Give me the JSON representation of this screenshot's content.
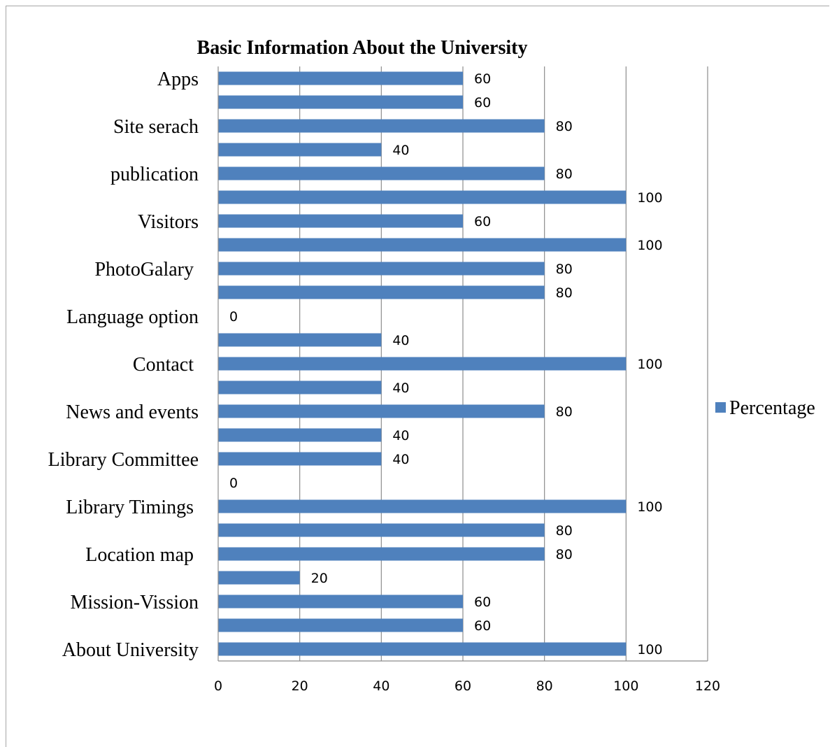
{
  "chart_data": {
    "type": "bar",
    "orientation": "horizontal",
    "title": "Basic Information About the University",
    "xlabel": "",
    "ylabel": "",
    "xlim": [
      0,
      120
    ],
    "x_ticks": [
      0,
      20,
      40,
      60,
      80,
      100,
      120
    ],
    "grid": true,
    "legend_position": "right",
    "bar_color": "#4f81bd",
    "categories": [
      "About University",
      "",
      "Mission-Vission",
      "",
      "Location map ",
      "",
      "Library Timings ",
      "",
      "Library Committee",
      "",
      "News and events",
      "",
      "Contact ",
      "",
      "Language option",
      "",
      "PhotoGalary ",
      "",
      "Visitors",
      "",
      "publication",
      "",
      "Site serach",
      "",
      "Apps"
    ],
    "series": [
      {
        "name": "Percentage",
        "values": [
          100,
          60,
          60,
          20,
          80,
          80,
          100,
          0,
          40,
          40,
          80,
          40,
          100,
          40,
          0,
          80,
          80,
          100,
          60,
          100,
          80,
          40,
          80,
          60,
          60
        ]
      }
    ]
  }
}
